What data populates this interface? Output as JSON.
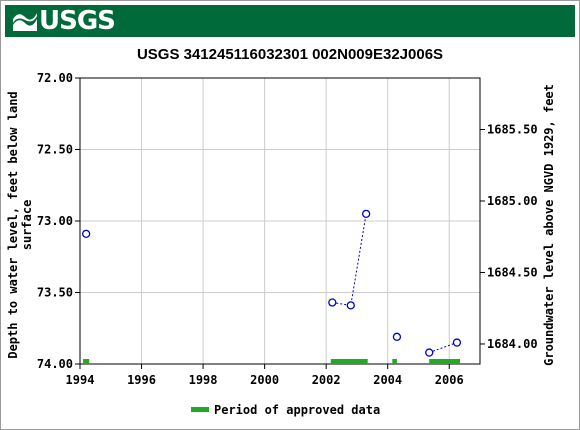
{
  "header": {
    "logo_text": "USGS",
    "logo_icon": "usgs-wave-icon",
    "banner_color": "#006a3a"
  },
  "chart_data": {
    "type": "scatter",
    "title": "USGS 341245116032301 002N009E32J006S",
    "xlabel": "",
    "ylabel": "Depth to water level, feet below land surface",
    "ylabel_lines": [
      "Depth to water level, feet below land",
      "surface"
    ],
    "y2label": "Groundwater level above NGVD 1929, feet",
    "xlim": [
      1994,
      2007
    ],
    "ylim": [
      74.0,
      72.0
    ],
    "y_inverted": true,
    "y2lim": [
      1683.86,
      1685.86
    ],
    "x_ticks": [
      1994,
      1996,
      1998,
      2000,
      2002,
      2004,
      2006
    ],
    "x_tick_labels": [
      "1994",
      "1996",
      "1998",
      "2000",
      "2002",
      "2004",
      "2006"
    ],
    "y_ticks": [
      72.0,
      72.5,
      73.0,
      73.5,
      74.0
    ],
    "y_tick_labels": [
      "72.00",
      "72.50",
      "73.00",
      "73.50",
      "74.00"
    ],
    "y2_ticks": [
      1684.0,
      1684.5,
      1685.0,
      1685.5
    ],
    "y2_tick_labels": [
      "1684.00",
      "1684.50",
      "1685.00",
      "1685.50"
    ],
    "grid": true,
    "series": [
      {
        "marker_color": "#0000cc",
        "marker": "open-circle",
        "x": [
          1994.2,
          2002.2,
          2002.8,
          2003.3,
          2004.3,
          2005.35,
          2006.25
        ],
        "y": [
          73.09,
          73.57,
          73.59,
          72.95,
          73.81,
          73.92,
          73.85
        ],
        "connected_segments": [
          [
            1,
            2,
            3
          ],
          [
            5,
            6
          ]
        ]
      }
    ],
    "approved_periods": {
      "color": "#22aa22",
      "spans": [
        [
          1994.1,
          1994.3
        ],
        [
          2002.15,
          2003.35
        ],
        [
          2004.15,
          2004.3
        ],
        [
          2005.35,
          2006.35
        ]
      ]
    },
    "legend": {
      "label": "Period of approved data",
      "placement": "bottom-center"
    }
  }
}
